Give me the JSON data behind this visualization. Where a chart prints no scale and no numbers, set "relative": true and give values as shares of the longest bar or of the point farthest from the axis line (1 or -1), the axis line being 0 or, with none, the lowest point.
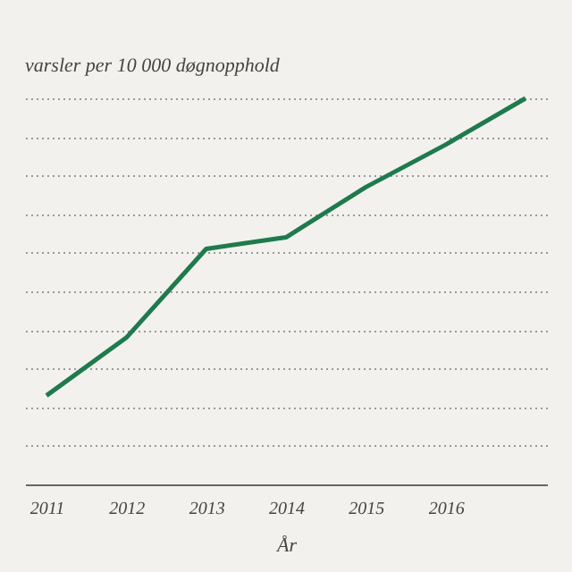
{
  "chart_data": {
    "type": "line",
    "title": "varsler per 10 000 døgnopphold",
    "xlabel": "År",
    "categories": [
      "2011",
      "2012",
      "2013",
      "2014",
      "2015",
      "2016",
      null
    ],
    "series": [
      {
        "color": "#1f7a4d",
        "values": [
          0.23,
          0.38,
          0.61,
          0.64,
          0.77,
          0.88,
          1.0
        ]
      }
    ],
    "relative": true,
    "grid": "y",
    "marker": "none",
    "line_style": "solid",
    "tick_labels": "x"
  }
}
